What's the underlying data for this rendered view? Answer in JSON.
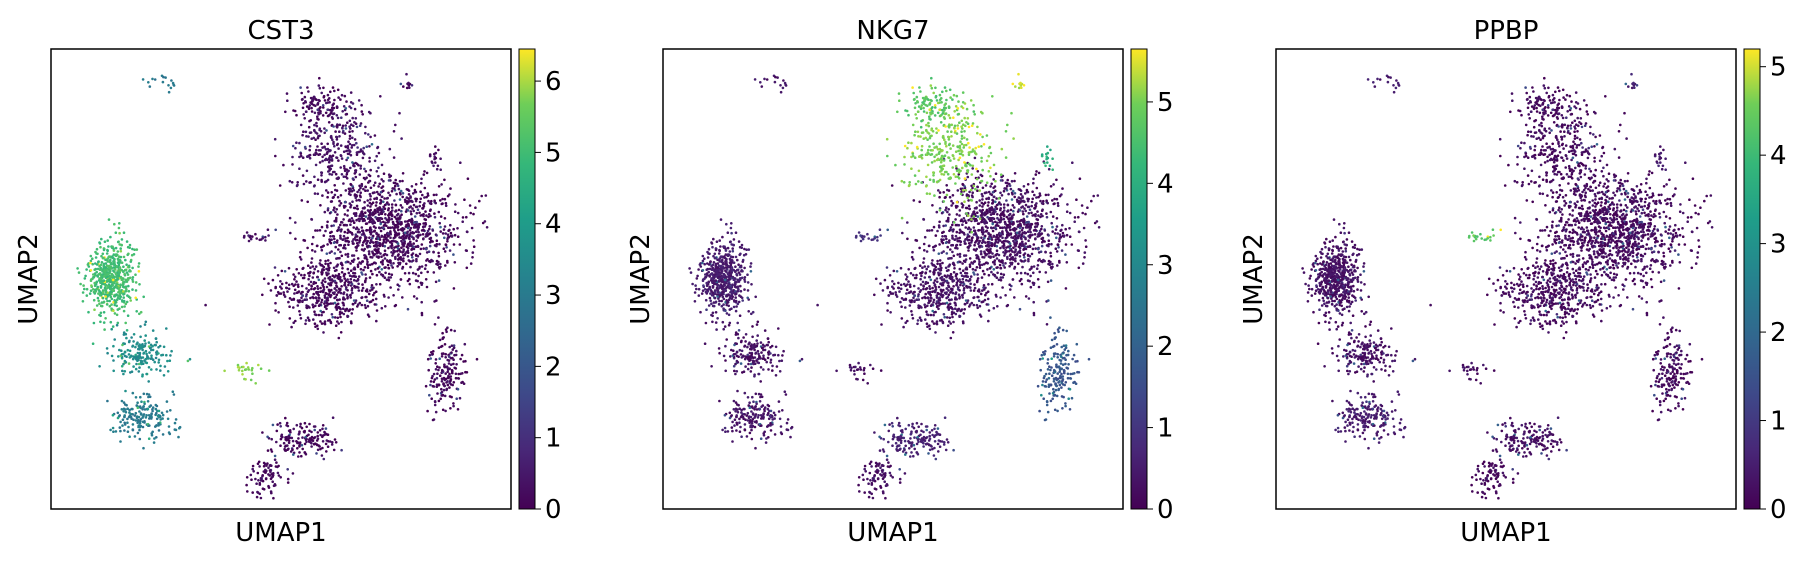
{
  "chart_data": [
    {
      "type": "scatter",
      "title": "CST3",
      "xlabel": "UMAP1",
      "ylabel": "UMAP2",
      "colormap": "viridis",
      "color_range": [
        0,
        6.45
      ],
      "colorbar_ticks": [
        "0",
        "1",
        "2",
        "3",
        "4",
        "5",
        "6"
      ]
    },
    {
      "type": "scatter",
      "title": "NKG7",
      "xlabel": "UMAP1",
      "ylabel": "UMAP2",
      "colormap": "viridis",
      "color_range": [
        0,
        5.65
      ],
      "colorbar_ticks": [
        "0",
        "1",
        "2",
        "3",
        "4",
        "5"
      ]
    },
    {
      "type": "scatter",
      "title": "PPBP",
      "xlabel": "UMAP1",
      "ylabel": "UMAP2",
      "colormap": "viridis",
      "color_range": [
        0,
        5.2
      ],
      "colorbar_ticks": [
        "0",
        "1",
        "2",
        "3",
        "4",
        "5"
      ]
    }
  ]
}
